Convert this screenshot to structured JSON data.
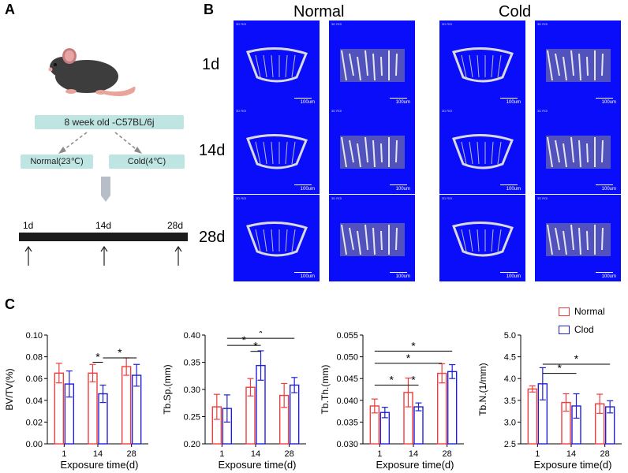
{
  "panel_labels": {
    "a": "A",
    "b": "B",
    "c": "C"
  },
  "panel_a": {
    "strain": "8 week old -C57BL/6j",
    "group_normal": "Normal(23℃)",
    "group_cold": "Cold(4℃)",
    "timeline": [
      "1d",
      "14d",
      "28d"
    ]
  },
  "panel_b": {
    "col_groups": [
      "Normal",
      "Cold"
    ],
    "row_labels": [
      "1d",
      "14d",
      "28d"
    ],
    "scale_label": "100um",
    "tile_tag": "3D ROI"
  },
  "panel_c": {
    "legend": [
      {
        "label": "Normal",
        "color": "#f03c3c"
      },
      {
        "label": "Clod",
        "color": "#1f1fd6"
      }
    ],
    "xlabel": "Exposure time(d)",
    "categories": [
      "1",
      "14",
      "28"
    ]
  },
  "colors": {
    "normal": "#f03c3c",
    "cold": "#1f1fd6",
    "tile_bg": "#0a0dfa",
    "pill": "#bfe5e2"
  },
  "chart_data": [
    {
      "type": "bar",
      "title": "",
      "ylabel": "BV/TV(%)",
      "xlabel": "Exposure time(d)",
      "categories": [
        "1",
        "14",
        "28"
      ],
      "ylim": [
        0.0,
        0.1
      ],
      "ticks": [
        0.0,
        0.02,
        0.04,
        0.06,
        0.08,
        0.1
      ],
      "tick_labels": [
        "0.00",
        "0.02",
        "0.04",
        "0.06",
        "0.08",
        "0.10"
      ],
      "series": [
        {
          "name": "Normal",
          "values": [
            0.065,
            0.065,
            0.071
          ],
          "errors": [
            0.009,
            0.008,
            0.008
          ]
        },
        {
          "name": "Clod",
          "values": [
            0.055,
            0.046,
            0.063
          ],
          "errors": [
            0.012,
            0.008,
            0.01
          ]
        }
      ],
      "significance": [
        {
          "from_cat": 1,
          "from_series": 0,
          "to_cat": 1,
          "to_series": 1,
          "label": "*",
          "level": 0.075
        },
        {
          "from_cat": 1,
          "from_series": 1,
          "to_cat": 2,
          "to_series": 1,
          "label": "*",
          "level": 0.079
        }
      ]
    },
    {
      "type": "bar",
      "title": "",
      "ylabel": "Tb.Sp.(mm)",
      "xlabel": "Exposure time(d)",
      "categories": [
        "1",
        "14",
        "28"
      ],
      "ylim": [
        0.2,
        0.4
      ],
      "ticks": [
        0.2,
        0.25,
        0.3,
        0.35,
        0.4
      ],
      "tick_labels": [
        "0.20",
        "0.25",
        "0.30",
        "0.35",
        "0.40"
      ],
      "series": [
        {
          "name": "Normal",
          "values": [
            0.268,
            0.304,
            0.289
          ],
          "errors": [
            0.023,
            0.016,
            0.022
          ]
        },
        {
          "name": "Clod",
          "values": [
            0.265,
            0.344,
            0.308
          ],
          "errors": [
            0.025,
            0.027,
            0.014
          ]
        }
      ],
      "significance": [
        {
          "from_cat": 1,
          "from_series": 0,
          "to_cat": 1,
          "to_series": 1,
          "label": "*",
          "level": 0.37
        },
        {
          "from_cat": 0,
          "from_series": 1,
          "to_cat": 1,
          "to_series": 1,
          "label": "*",
          "level": 0.381
        },
        {
          "from_cat": 0,
          "from_series": 1,
          "to_cat": 2,
          "to_series": 1,
          "label": "*",
          "level": 0.394
        }
      ]
    },
    {
      "type": "bar",
      "title": "",
      "ylabel": "Tb.Th.(mm)",
      "xlabel": "Exposure time(d)",
      "categories": [
        "1",
        "14",
        "28"
      ],
      "ylim": [
        0.03,
        0.055
      ],
      "ticks": [
        0.03,
        0.035,
        0.04,
        0.045,
        0.05,
        0.055
      ],
      "tick_labels": [
        "0.030",
        "0.035",
        "0.040",
        "0.045",
        "0.050",
        "0.055"
      ],
      "series": [
        {
          "name": "Normal",
          "values": [
            0.0387,
            0.0418,
            0.0462
          ],
          "errors": [
            0.0016,
            0.0033,
            0.0022
          ]
        },
        {
          "name": "Clod",
          "values": [
            0.0372,
            0.0385,
            0.0466
          ],
          "errors": [
            0.0012,
            0.0009,
            0.0016
          ]
        }
      ],
      "significance": [
        {
          "from_cat": 0,
          "from_series": 0,
          "to_cat": 1,
          "to_series": 0,
          "label": "*",
          "level": 0.0435
        },
        {
          "from_cat": 1,
          "from_series": 0,
          "to_cat": 1,
          "to_series": 1,
          "label": "*",
          "level": 0.0435
        },
        {
          "from_cat": 0,
          "from_series": 0,
          "to_cat": 2,
          "to_series": 0,
          "label": "*",
          "level": 0.0485
        },
        {
          "from_cat": 0,
          "from_series": 0,
          "to_cat": 2,
          "to_series": 1,
          "label": "*",
          "level": 0.0513
        }
      ]
    },
    {
      "type": "bar",
      "title": "",
      "ylabel": "Tb.N.(1/mm)",
      "xlabel": "Exposure time(d)",
      "categories": [
        "1",
        "14",
        "28"
      ],
      "ylim": [
        2.5,
        5.0
      ],
      "ticks": [
        2.5,
        3.0,
        3.5,
        4.0,
        4.5,
        5.0
      ],
      "tick_labels": [
        "2.5",
        "3.0",
        "3.5",
        "4.0",
        "4.5",
        "5.0"
      ],
      "series": [
        {
          "name": "Normal",
          "values": [
            3.76,
            3.45,
            3.42
          ],
          "errors": [
            0.07,
            0.2,
            0.22
          ]
        },
        {
          "name": "Clod",
          "values": [
            3.88,
            3.37,
            3.35
          ],
          "errors": [
            0.37,
            0.28,
            0.14
          ]
        }
      ],
      "significance": [
        {
          "from_cat": 0,
          "from_series": 1,
          "to_cat": 1,
          "to_series": 1,
          "label": "*",
          "level": 4.12
        },
        {
          "from_cat": 0,
          "from_series": 1,
          "to_cat": 2,
          "to_series": 1,
          "label": "*",
          "level": 4.33
        }
      ]
    }
  ]
}
